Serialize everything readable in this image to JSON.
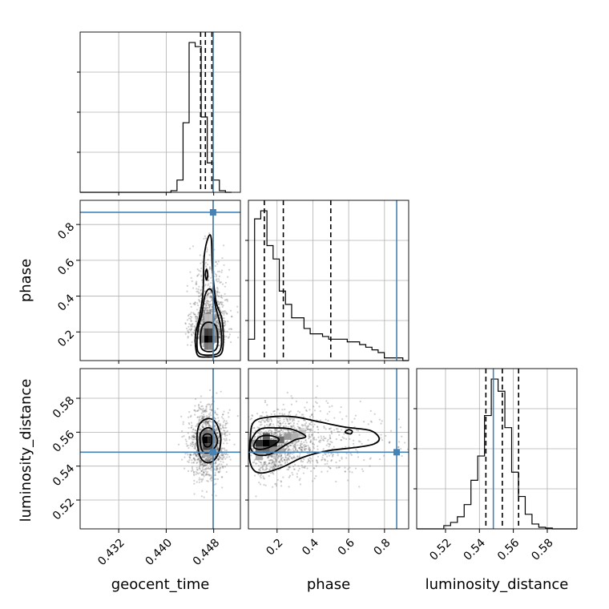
{
  "chart_data": {
    "type": "corner",
    "grid": true,
    "parameters": [
      "geocent_time",
      "phase",
      "luminosity_distance"
    ],
    "colors": {
      "truth": "#4682b4",
      "histogram": "#000000",
      "quantiles": "#000000",
      "scatter": "#555555"
    },
    "truths": {
      "geocent_time": 0.4479,
      "phase": 0.868,
      "luminosity_distance": 0.5482
    },
    "ranges": {
      "geocent_time": [
        0.4255,
        0.4525
      ],
      "phase": [
        0.04,
        0.935
      ],
      "luminosity_distance": [
        0.503,
        0.5975
      ]
    },
    "ticks": {
      "geocent_time": {
        "values": [
          0.432,
          0.44,
          0.448
        ],
        "labels": [
          "0.432",
          "0.440",
          "0.448"
        ]
      },
      "phase": {
        "values": [
          0.2,
          0.4,
          0.6,
          0.8
        ],
        "labels": [
          "0.2",
          "0.4",
          "0.6",
          "0.8"
        ]
      },
      "luminosity_distance": {
        "values": [
          0.52,
          0.54,
          0.56,
          0.58
        ],
        "labels": [
          "0.52",
          "0.54",
          "0.56",
          "0.58"
        ]
      }
    },
    "quantiles": {
      "geocent_time": [
        0.4458,
        0.4466,
        0.4477
      ],
      "phase": [
        0.129,
        0.235,
        0.5
      ],
      "luminosity_distance": [
        0.5438,
        0.5535,
        0.5631
      ]
    },
    "histograms": {
      "geocent_time": {
        "edges": [
          0.4255,
          0.42652,
          0.42754,
          0.42856,
          0.42958,
          0.4306,
          0.43162,
          0.43264,
          0.43366,
          0.43468,
          0.4357,
          0.43672,
          0.43774,
          0.43876,
          0.43978,
          0.4408,
          0.44182,
          0.44284,
          0.44386,
          0.44488,
          0.4459,
          0.44692,
          0.44794,
          0.44896,
          0.44998,
          0.451
        ],
        "counts": [
          0,
          0,
          0,
          0,
          0,
          0,
          0,
          0,
          0,
          0,
          0,
          0,
          0,
          0,
          0,
          2,
          15,
          85,
          183,
          178,
          92,
          36,
          15,
          2,
          0
        ]
      },
      "phase": {
        "edges": [
          0.04,
          0.0745,
          0.109,
          0.1435,
          0.178,
          0.2125,
          0.247,
          0.2815,
          0.316,
          0.3505,
          0.385,
          0.4195,
          0.454,
          0.4885,
          0.523,
          0.5575,
          0.592,
          0.6265,
          0.661,
          0.6955,
          0.73,
          0.7645,
          0.799,
          0.8335,
          0.868,
          0.9025,
          0.935
        ],
        "counts": [
          8,
          53,
          56,
          43,
          38,
          26,
          21,
          16,
          16,
          12,
          10,
          10,
          9,
          8,
          8,
          8,
          7,
          7,
          6,
          5,
          4,
          3,
          1,
          1,
          1,
          0
        ]
      },
      "luminosity_distance": {
        "edges": [
          0.503,
          0.507,
          0.511,
          0.515,
          0.519,
          0.523,
          0.527,
          0.531,
          0.535,
          0.539,
          0.543,
          0.547,
          0.551,
          0.555,
          0.559,
          0.563,
          0.567,
          0.571,
          0.575,
          0.579,
          0.583,
          0.587,
          0.591,
          0.5975
        ],
        "counts": [
          0,
          0,
          0,
          0,
          4,
          8,
          15,
          30,
          60,
          90,
          140,
          185,
          170,
          125,
          70,
          40,
          18,
          6,
          2,
          1,
          0,
          0,
          0
        ]
      }
    },
    "joint": [
      {
        "x": "geocent_time",
        "y": "phase",
        "density_cells": [
          {
            "x": 0.4468,
            "y": 0.16,
            "v": 1.0
          },
          {
            "x": 0.4476,
            "y": 0.16,
            "v": 0.9
          },
          {
            "x": 0.4468,
            "y": 0.2,
            "v": 0.75
          },
          {
            "x": 0.4476,
            "y": 0.2,
            "v": 0.7
          },
          {
            "x": 0.446,
            "y": 0.16,
            "v": 0.45
          },
          {
            "x": 0.4484,
            "y": 0.16,
            "v": 0.45
          },
          {
            "x": 0.446,
            "y": 0.2,
            "v": 0.35
          },
          {
            "x": 0.4484,
            "y": 0.2,
            "v": 0.35
          },
          {
            "x": 0.4468,
            "y": 0.12,
            "v": 0.5
          },
          {
            "x": 0.4476,
            "y": 0.12,
            "v": 0.45
          },
          {
            "x": 0.4468,
            "y": 0.24,
            "v": 0.35
          },
          {
            "x": 0.4476,
            "y": 0.24,
            "v": 0.3
          },
          {
            "x": 0.4468,
            "y": 0.28,
            "v": 0.2
          },
          {
            "x": 0.4476,
            "y": 0.28,
            "v": 0.18
          }
        ],
        "contours": [
          [
            [
              0.4458,
              0.13
            ],
            [
              0.4462,
              0.1
            ],
            [
              0.4472,
              0.09
            ],
            [
              0.4483,
              0.1
            ],
            [
              0.4487,
              0.14
            ],
            [
              0.4485,
              0.22
            ],
            [
              0.4478,
              0.25
            ],
            [
              0.4466,
              0.25
            ],
            [
              0.4459,
              0.21
            ]
          ],
          [
            [
              0.4452,
              0.12
            ],
            [
              0.4456,
              0.08
            ],
            [
              0.447,
              0.07
            ],
            [
              0.4487,
              0.08
            ],
            [
              0.4493,
              0.13
            ],
            [
              0.4491,
              0.24
            ],
            [
              0.4484,
              0.33
            ],
            [
              0.4478,
              0.42
            ],
            [
              0.4472,
              0.44
            ],
            [
              0.4465,
              0.4
            ],
            [
              0.446,
              0.3
            ],
            [
              0.4454,
              0.22
            ]
          ],
          [
            [
              0.4449,
              0.14
            ],
            [
              0.4453,
              0.07
            ],
            [
              0.4468,
              0.06
            ],
            [
              0.449,
              0.07
            ],
            [
              0.4496,
              0.13
            ],
            [
              0.4494,
              0.27
            ],
            [
              0.4484,
              0.37
            ],
            [
              0.4478,
              0.55
            ],
            [
              0.4476,
              0.72
            ],
            [
              0.4471,
              0.73
            ],
            [
              0.4464,
              0.62
            ],
            [
              0.4462,
              0.42
            ],
            [
              0.4456,
              0.28
            ],
            [
              0.445,
              0.2
            ]
          ],
          [
            [
              0.4466,
              0.52
            ],
            [
              0.4468,
              0.49
            ],
            [
              0.447,
              0.52
            ],
            [
              0.4468,
              0.55
            ]
          ]
        ]
      },
      {
        "x": "geocent_time",
        "y": "luminosity_distance",
        "density_cells": [
          {
            "x": 0.4466,
            "y": 0.5555,
            "v": 1.0
          },
          {
            "x": 0.4474,
            "y": 0.5555,
            "v": 0.85
          },
          {
            "x": 0.4466,
            "y": 0.5515,
            "v": 0.7
          },
          {
            "x": 0.4474,
            "y": 0.5515,
            "v": 0.65
          },
          {
            "x": 0.4458,
            "y": 0.5555,
            "v": 0.45
          },
          {
            "x": 0.4482,
            "y": 0.5555,
            "v": 0.4
          },
          {
            "x": 0.4466,
            "y": 0.5595,
            "v": 0.5
          },
          {
            "x": 0.4474,
            "y": 0.5595,
            "v": 0.45
          },
          {
            "x": 0.4458,
            "y": 0.5515,
            "v": 0.35
          },
          {
            "x": 0.4482,
            "y": 0.5515,
            "v": 0.3
          },
          {
            "x": 0.4466,
            "y": 0.5475,
            "v": 0.3
          },
          {
            "x": 0.4474,
            "y": 0.5475,
            "v": 0.28
          }
        ],
        "contours": [
          [
            [
              0.4462,
              0.5555
            ],
            [
              0.4465,
              0.552
            ],
            [
              0.4472,
              0.5515
            ],
            [
              0.4477,
              0.554
            ],
            [
              0.4476,
              0.558
            ],
            [
              0.4469,
              0.559
            ],
            [
              0.4463,
              0.558
            ]
          ],
          [
            [
              0.4457,
              0.5555
            ],
            [
              0.4461,
              0.549
            ],
            [
              0.4472,
              0.548
            ],
            [
              0.4484,
              0.552
            ],
            [
              0.4486,
              0.556
            ],
            [
              0.4478,
              0.5615
            ],
            [
              0.4468,
              0.5625
            ],
            [
              0.4459,
              0.56
            ]
          ],
          [
            [
              0.4452,
              0.5555
            ],
            [
              0.4458,
              0.545
            ],
            [
              0.4472,
              0.542
            ],
            [
              0.4486,
              0.546
            ],
            [
              0.4492,
              0.556
            ],
            [
              0.4484,
              0.5655
            ],
            [
              0.447,
              0.568
            ],
            [
              0.4456,
              0.5645
            ]
          ]
        ]
      },
      {
        "x": "phase",
        "y": "luminosity_distance",
        "density_cells": [
          {
            "x": 0.14,
            "y": 0.5535,
            "v": 1.0
          },
          {
            "x": 0.18,
            "y": 0.5535,
            "v": 0.85
          },
          {
            "x": 0.1,
            "y": 0.5535,
            "v": 0.8
          },
          {
            "x": 0.14,
            "y": 0.5575,
            "v": 0.6
          },
          {
            "x": 0.22,
            "y": 0.5555,
            "v": 0.55
          },
          {
            "x": 0.1,
            "y": 0.5495,
            "v": 0.5
          },
          {
            "x": 0.14,
            "y": 0.5495,
            "v": 0.55
          },
          {
            "x": 0.26,
            "y": 0.5575,
            "v": 0.35
          },
          {
            "x": 0.3,
            "y": 0.5575,
            "v": 0.25
          },
          {
            "x": 0.06,
            "y": 0.5535,
            "v": 0.35
          },
          {
            "x": 0.18,
            "y": 0.5495,
            "v": 0.4
          },
          {
            "x": 0.22,
            "y": 0.5495,
            "v": 0.25
          },
          {
            "x": 0.1,
            "y": 0.5455,
            "v": 0.25
          },
          {
            "x": 0.34,
            "y": 0.5595,
            "v": 0.18
          }
        ],
        "contours": [
          [
            [
              0.07,
              0.552
            ],
            [
              0.09,
              0.55
            ],
            [
              0.14,
              0.5505
            ],
            [
              0.19,
              0.553
            ],
            [
              0.21,
              0.556
            ],
            [
              0.16,
              0.558
            ],
            [
              0.1,
              0.557
            ]
          ],
          [
            [
              0.05,
              0.553
            ],
            [
              0.08,
              0.547
            ],
            [
              0.16,
              0.547
            ],
            [
              0.24,
              0.552
            ],
            [
              0.3,
              0.5555
            ],
            [
              0.36,
              0.5575
            ],
            [
              0.29,
              0.5615
            ],
            [
              0.2,
              0.5625
            ],
            [
              0.1,
              0.5615
            ]
          ],
          [
            [
              0.05,
              0.542
            ],
            [
              0.1,
              0.536
            ],
            [
              0.22,
              0.539
            ],
            [
              0.34,
              0.545
            ],
            [
              0.48,
              0.549
            ],
            [
              0.64,
              0.551
            ],
            [
              0.74,
              0.553
            ],
            [
              0.77,
              0.5565
            ],
            [
              0.72,
              0.561
            ],
            [
              0.58,
              0.563
            ],
            [
              0.44,
              0.566
            ],
            [
              0.3,
              0.569
            ],
            [
              0.16,
              0.569
            ],
            [
              0.07,
              0.566
            ],
            [
              0.05,
              0.556
            ]
          ],
          [
            [
              0.58,
              0.56
            ],
            [
              0.61,
              0.559
            ],
            [
              0.62,
              0.5605
            ],
            [
              0.6,
              0.5615
            ]
          ]
        ]
      }
    ]
  }
}
